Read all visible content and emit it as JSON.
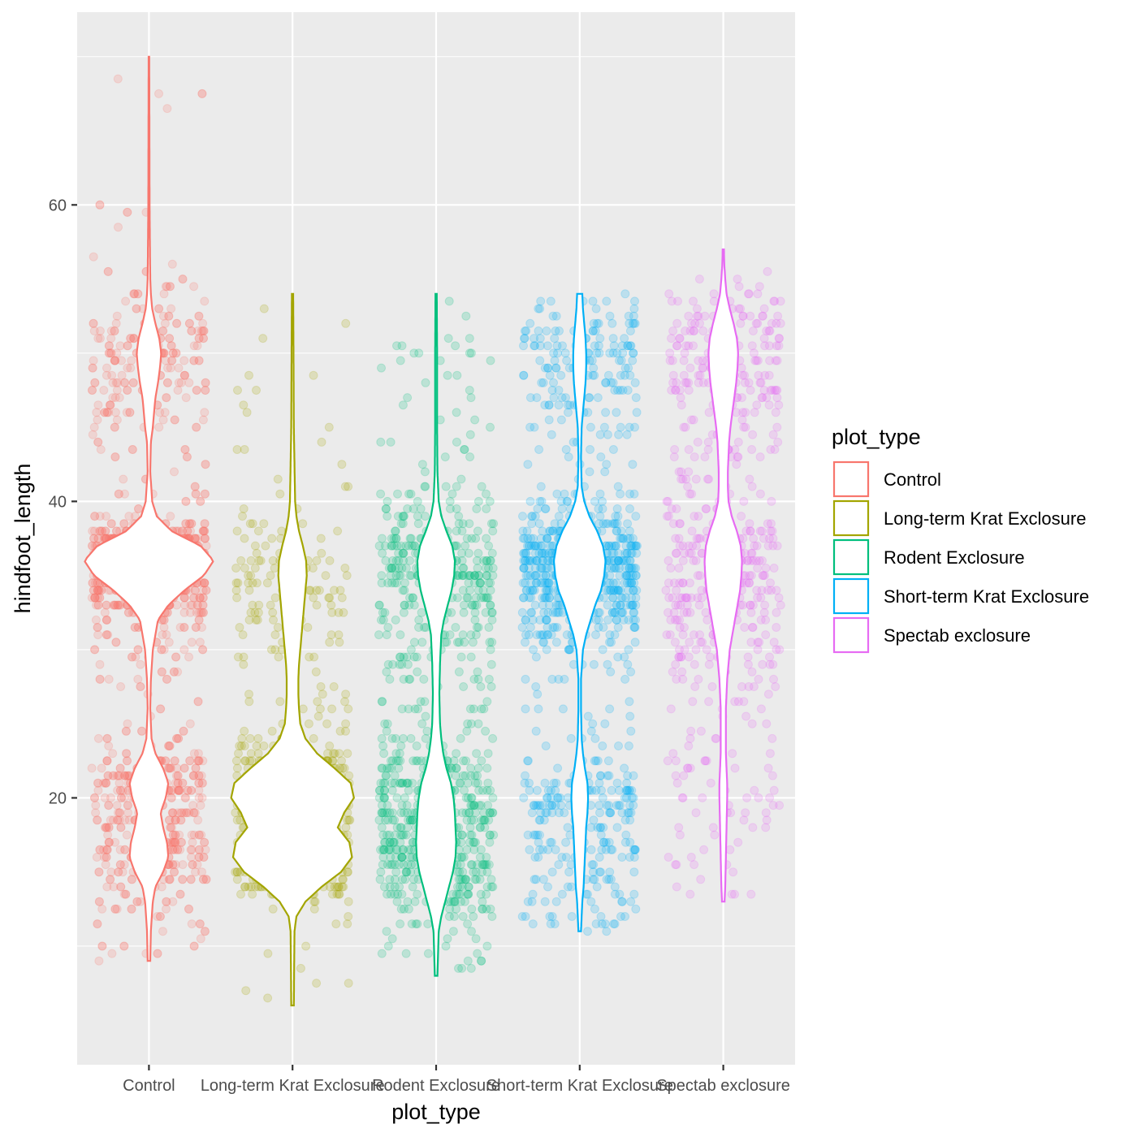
{
  "chart_data": {
    "type": "violin",
    "xlabel": "plot_type",
    "ylabel": "hindfoot_length",
    "ylim": [
      2,
      73
    ],
    "y_ticks": [
      20,
      40,
      60
    ],
    "grid": true,
    "legend_title": "plot_type",
    "legend_position": "right",
    "jitter_points": true,
    "categories": [
      "Control",
      "Long-term Krat Exclosure",
      "Rodent Exclosure",
      "Short-term Krat Exclosure",
      "Spectab exclosure"
    ],
    "colors": [
      "#F8766D",
      "#A3A500",
      "#00BF7D",
      "#00B0F6",
      "#E76BF3"
    ],
    "series": [
      {
        "range": [
          9,
          70
        ],
        "density": [
          [
            9,
            0.02
          ],
          [
            11,
            0.03
          ],
          [
            13,
            0.06
          ],
          [
            14,
            0.1
          ],
          [
            15,
            0.22
          ],
          [
            16,
            0.3
          ],
          [
            17,
            0.28
          ],
          [
            18,
            0.22
          ],
          [
            19,
            0.18
          ],
          [
            20,
            0.26
          ],
          [
            21,
            0.3
          ],
          [
            22,
            0.22
          ],
          [
            23,
            0.1
          ],
          [
            24,
            0.04
          ],
          [
            26,
            0.02
          ],
          [
            28,
            0.03
          ],
          [
            30,
            0.06
          ],
          [
            32,
            0.14
          ],
          [
            33,
            0.3
          ],
          [
            34,
            0.55
          ],
          [
            35,
            0.85
          ],
          [
            36,
            1.0
          ],
          [
            37,
            0.8
          ],
          [
            38,
            0.35
          ],
          [
            39,
            0.12
          ],
          [
            40,
            0.05
          ],
          [
            42,
            0.02
          ],
          [
            44,
            0.03
          ],
          [
            45,
            0.06
          ],
          [
            46,
            0.08
          ],
          [
            47,
            0.1
          ],
          [
            48,
            0.14
          ],
          [
            49,
            0.17
          ],
          [
            50,
            0.19
          ],
          [
            51,
            0.16
          ],
          [
            52,
            0.1
          ],
          [
            53,
            0.05
          ],
          [
            54,
            0.03
          ],
          [
            55,
            0.02
          ],
          [
            60,
            0.01
          ],
          [
            70,
            0.005
          ]
        ]
      },
      {
        "range": [
          6,
          54
        ],
        "density": [
          [
            6,
            0.02
          ],
          [
            11,
            0.03
          ],
          [
            12,
            0.06
          ],
          [
            13,
            0.2
          ],
          [
            14,
            0.45
          ],
          [
            15,
            0.75
          ],
          [
            16,
            0.92
          ],
          [
            17,
            0.88
          ],
          [
            18,
            0.7
          ],
          [
            19,
            0.8
          ],
          [
            20,
            0.95
          ],
          [
            21,
            0.9
          ],
          [
            22,
            0.65
          ],
          [
            23,
            0.38
          ],
          [
            24,
            0.2
          ],
          [
            25,
            0.12
          ],
          [
            26,
            0.1
          ],
          [
            27,
            0.09
          ],
          [
            28,
            0.09
          ],
          [
            29,
            0.1
          ],
          [
            30,
            0.12
          ],
          [
            31,
            0.14
          ],
          [
            32,
            0.16
          ],
          [
            33,
            0.18
          ],
          [
            34,
            0.2
          ],
          [
            35,
            0.22
          ],
          [
            36,
            0.21
          ],
          [
            37,
            0.16
          ],
          [
            38,
            0.1
          ],
          [
            39,
            0.06
          ],
          [
            40,
            0.04
          ],
          [
            45,
            0.02
          ],
          [
            50,
            0.015
          ],
          [
            54,
            0.01
          ]
        ]
      },
      {
        "range": [
          8,
          54
        ],
        "density": [
          [
            8,
            0.02
          ],
          [
            11,
            0.04
          ],
          [
            12,
            0.08
          ],
          [
            13,
            0.14
          ],
          [
            14,
            0.2
          ],
          [
            15,
            0.26
          ],
          [
            16,
            0.3
          ],
          [
            17,
            0.31
          ],
          [
            18,
            0.3
          ],
          [
            19,
            0.29
          ],
          [
            20,
            0.27
          ],
          [
            21,
            0.23
          ],
          [
            22,
            0.16
          ],
          [
            23,
            0.11
          ],
          [
            24,
            0.08
          ],
          [
            25,
            0.06
          ],
          [
            27,
            0.05
          ],
          [
            29,
            0.06
          ],
          [
            31,
            0.08
          ],
          [
            32,
            0.12
          ],
          [
            33,
            0.18
          ],
          [
            34,
            0.24
          ],
          [
            35,
            0.28
          ],
          [
            36,
            0.29
          ],
          [
            37,
            0.25
          ],
          [
            38,
            0.16
          ],
          [
            39,
            0.08
          ],
          [
            40,
            0.04
          ],
          [
            42,
            0.02
          ],
          [
            45,
            0.015
          ],
          [
            50,
            0.015
          ],
          [
            54,
            0.01
          ]
        ]
      },
      {
        "range": [
          11,
          54
        ],
        "density": [
          [
            11,
            0.02
          ],
          [
            13,
            0.04
          ],
          [
            14,
            0.06
          ],
          [
            16,
            0.08
          ],
          [
            18,
            0.1
          ],
          [
            19,
            0.12
          ],
          [
            20,
            0.13
          ],
          [
            21,
            0.12
          ],
          [
            22,
            0.08
          ],
          [
            23,
            0.05
          ],
          [
            24,
            0.03
          ],
          [
            26,
            0.02
          ],
          [
            28,
            0.02
          ],
          [
            30,
            0.05
          ],
          [
            31,
            0.1
          ],
          [
            32,
            0.17
          ],
          [
            33,
            0.24
          ],
          [
            34,
            0.33
          ],
          [
            35,
            0.38
          ],
          [
            36,
            0.4
          ],
          [
            37,
            0.36
          ],
          [
            38,
            0.27
          ],
          [
            39,
            0.15
          ],
          [
            40,
            0.07
          ],
          [
            41,
            0.03
          ],
          [
            43,
            0.02
          ],
          [
            45,
            0.03
          ],
          [
            46,
            0.05
          ],
          [
            47,
            0.07
          ],
          [
            48,
            0.09
          ],
          [
            49,
            0.1
          ],
          [
            50,
            0.1
          ],
          [
            51,
            0.09
          ],
          [
            52,
            0.07
          ],
          [
            53,
            0.05
          ],
          [
            54,
            0.04
          ]
        ]
      },
      {
        "range": [
          13,
          57
        ],
        "density": [
          [
            13,
            0.02
          ],
          [
            14,
            0.03
          ],
          [
            16,
            0.04
          ],
          [
            18,
            0.05
          ],
          [
            20,
            0.06
          ],
          [
            21,
            0.06
          ],
          [
            22,
            0.05
          ],
          [
            23,
            0.04
          ],
          [
            24,
            0.04
          ],
          [
            25,
            0.04
          ],
          [
            26,
            0.04
          ],
          [
            27,
            0.05
          ],
          [
            28,
            0.06
          ],
          [
            29,
            0.08
          ],
          [
            30,
            0.1
          ],
          [
            31,
            0.14
          ],
          [
            32,
            0.18
          ],
          [
            33,
            0.22
          ],
          [
            34,
            0.26
          ],
          [
            35,
            0.28
          ],
          [
            36,
            0.29
          ],
          [
            37,
            0.27
          ],
          [
            38,
            0.21
          ],
          [
            39,
            0.13
          ],
          [
            40,
            0.08
          ],
          [
            41,
            0.07
          ],
          [
            42,
            0.07
          ],
          [
            43,
            0.08
          ],
          [
            44,
            0.09
          ],
          [
            45,
            0.11
          ],
          [
            46,
            0.14
          ],
          [
            47,
            0.17
          ],
          [
            48,
            0.2
          ],
          [
            49,
            0.22
          ],
          [
            50,
            0.23
          ],
          [
            51,
            0.21
          ],
          [
            52,
            0.16
          ],
          [
            53,
            0.1
          ],
          [
            54,
            0.05
          ],
          [
            55,
            0.03
          ],
          [
            56,
            0.015
          ],
          [
            57,
            0.01
          ]
        ]
      }
    ]
  }
}
